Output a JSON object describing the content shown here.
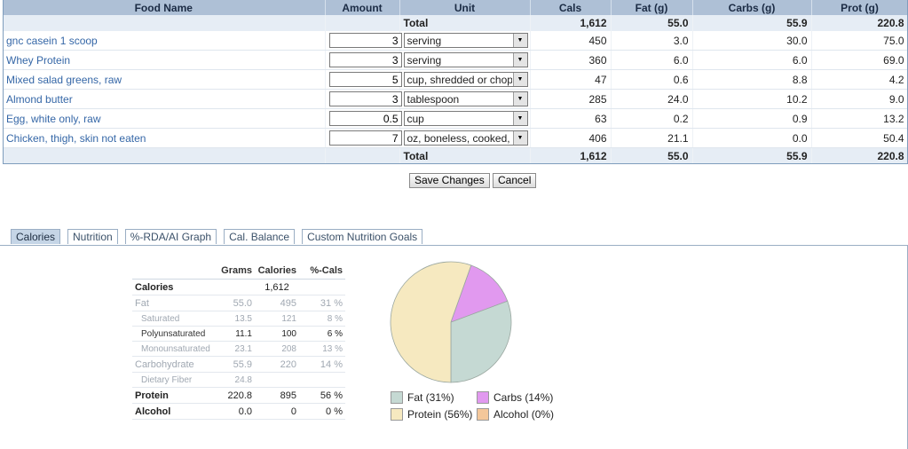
{
  "grid": {
    "headers": [
      "Food Name",
      "Amount",
      "Unit",
      "Cals",
      "Fat (g)",
      "Carbs (g)",
      "Prot (g)"
    ],
    "total": {
      "label": "Total",
      "cals": "1,612",
      "fat": "55.0",
      "carbs": "55.9",
      "prot": "220.8"
    },
    "rows": [
      {
        "food": "gnc casein 1 scoop",
        "amount": "3",
        "unit": "serving",
        "cals": "450",
        "fat": "3.0",
        "carbs": "30.0",
        "prot": "75.0"
      },
      {
        "food": "Whey Protein",
        "amount": "3",
        "unit": "serving",
        "cals": "360",
        "fat": "6.0",
        "carbs": "6.0",
        "prot": "69.0"
      },
      {
        "food": "Mixed salad greens, raw",
        "amount": "5",
        "unit": "cup, shredded or chopped",
        "cals": "47",
        "fat": "0.6",
        "carbs": "8.8",
        "prot": "4.2"
      },
      {
        "food": "Almond butter",
        "amount": "3",
        "unit": "tablespoon",
        "cals": "285",
        "fat": "24.0",
        "carbs": "10.2",
        "prot": "9.0"
      },
      {
        "food": "Egg, white only, raw",
        "amount": "0.5",
        "unit": "cup",
        "cals": "63",
        "fat": "0.2",
        "carbs": "0.9",
        "prot": "13.2"
      },
      {
        "food": "Chicken, thigh, skin not eaten",
        "amount": "7",
        "unit": "oz, boneless, cooked, skin",
        "cals": "406",
        "fat": "21.1",
        "carbs": "0.0",
        "prot": "50.4"
      }
    ]
  },
  "buttons": {
    "save": "Save Changes",
    "cancel": "Cancel"
  },
  "tabs": [
    "Calories",
    "Nutrition",
    "%-RDA/AI Graph",
    "Cal. Balance",
    "Custom Nutrition Goals"
  ],
  "summary": {
    "headers": [
      "",
      "Grams",
      "Calories",
      "%-Cals"
    ],
    "rows": [
      {
        "label": "Calories",
        "grams": "",
        "calories": "1,612",
        "pct": ""
      },
      {
        "label": "Fat",
        "grams": "55.0",
        "calories": "495",
        "pct": "31 %"
      },
      {
        "label": "Saturated",
        "grams": "13.5",
        "calories": "121",
        "pct": "8 %"
      },
      {
        "label": "Polyunsaturated",
        "grams": "11.1",
        "calories": "100",
        "pct": "6 %"
      },
      {
        "label": "Monounsaturated",
        "grams": "23.1",
        "calories": "208",
        "pct": "13 %"
      },
      {
        "label": "Carbohydrate",
        "grams": "55.9",
        "calories": "220",
        "pct": "14 %"
      },
      {
        "label": "Dietary Fiber",
        "grams": "24.8",
        "calories": "",
        "pct": ""
      },
      {
        "label": "Protein",
        "grams": "220.8",
        "calories": "895",
        "pct": "56 %"
      },
      {
        "label": "Alcohol",
        "grams": "0.0",
        "calories": "0",
        "pct": "0 %"
      }
    ]
  },
  "chart_data": {
    "type": "pie",
    "slices": [
      {
        "name": "Fat",
        "value": 31,
        "color": "#c5d9d3"
      },
      {
        "name": "Carbs",
        "value": 14,
        "color": "#e199ef"
      },
      {
        "name": "Protein",
        "value": 56,
        "color": "#f6e9c0"
      },
      {
        "name": "Alcohol",
        "value": 0,
        "color": "#f4c79a"
      }
    ],
    "legend": [
      "Fat (31%)",
      "Carbs (14%)",
      "Protein (56%)",
      "Alcohol (0%)"
    ]
  }
}
